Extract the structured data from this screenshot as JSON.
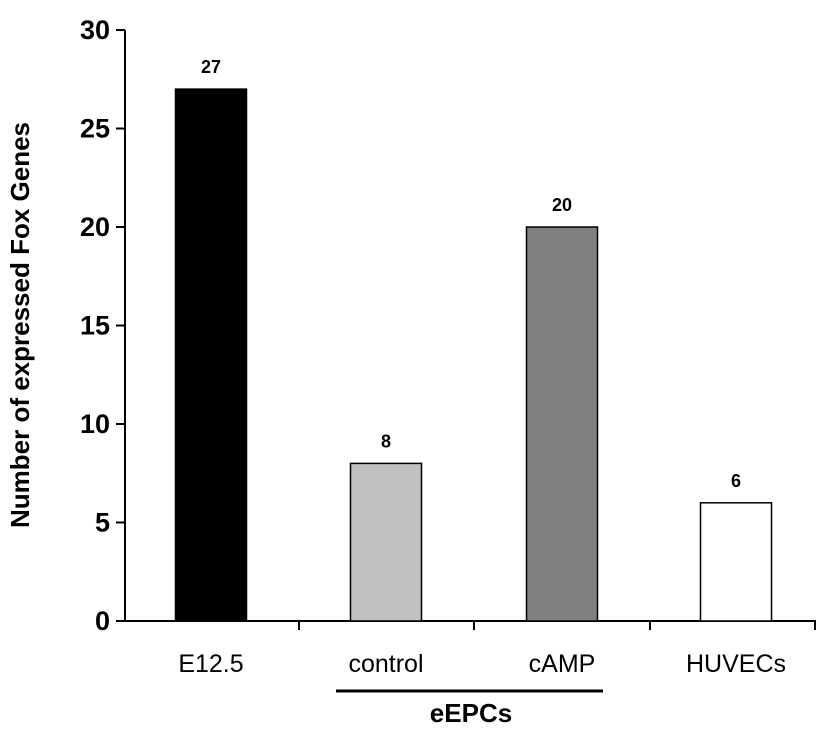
{
  "chart_data": {
    "type": "bar",
    "title": "",
    "xlabel": "",
    "ylabel": "Number of expressed Fox Genes",
    "ylim": [
      0,
      30
    ],
    "yticks": [
      "0",
      "5",
      "10",
      "15",
      "20",
      "25",
      "30"
    ],
    "grid": false,
    "categories": [
      "E12.5",
      "control",
      "cAMP",
      "HUVECs"
    ],
    "values": [
      27,
      8,
      20,
      6
    ],
    "value_labels": [
      "27",
      "8",
      "20",
      "6"
    ],
    "bar_colors": [
      "#000000",
      "#c0c0c0",
      "#808080",
      "#ffffff"
    ],
    "group_label": {
      "text": "eEPCs",
      "categories": [
        "control",
        "cAMP"
      ]
    }
  }
}
